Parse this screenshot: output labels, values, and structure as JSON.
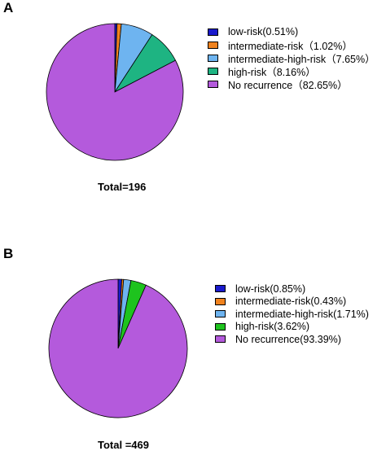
{
  "chart_data": [
    {
      "type": "pie",
      "panel_label": "A",
      "total_label": "Total=196",
      "slices": [
        {
          "label": "low-risk(0.51%)",
          "value": 0.51,
          "color": "#1a1acc"
        },
        {
          "label": "intermediate-risk（1.02%）",
          "value": 1.02,
          "color": "#f0821e"
        },
        {
          "label": "intermediate-high-risk（7.65%）",
          "value": 7.65,
          "color": "#6eb4f0"
        },
        {
          "label": "high-risk（8.16%）",
          "value": 8.16,
          "color": "#1eb482"
        },
        {
          "label": "No recurrence（82.65%）",
          "value": 82.65,
          "color": "#b45adc"
        }
      ],
      "legend_position": "right"
    },
    {
      "type": "pie",
      "panel_label": "B",
      "total_label": "Total =469",
      "slices": [
        {
          "label": "low-risk(0.85%)",
          "value": 0.85,
          "color": "#1a1acc"
        },
        {
          "label": "intermediate-risk(0.43%)",
          "value": 0.43,
          "color": "#f0821e"
        },
        {
          "label": "intermediate-high-risk(1.71%)",
          "value": 1.71,
          "color": "#6eb4f0"
        },
        {
          "label": "high-risk(3.62%)",
          "value": 3.62,
          "color": "#1ec31e"
        },
        {
          "label": "No recurrence(93.39%)",
          "value": 93.39,
          "color": "#b45adc"
        }
      ],
      "legend_position": "right"
    }
  ]
}
